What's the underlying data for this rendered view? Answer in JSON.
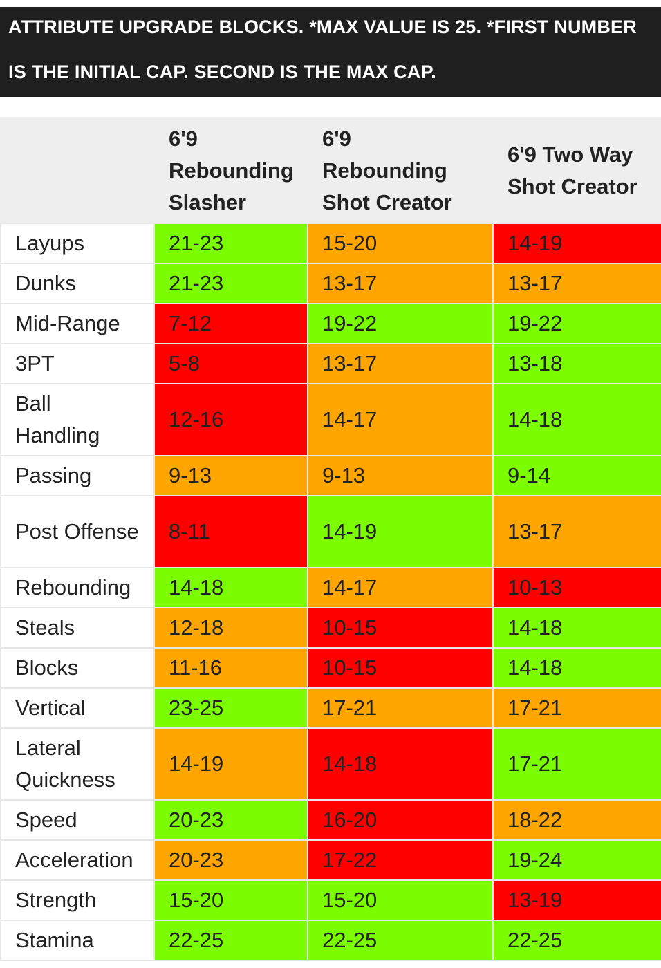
{
  "banner": {
    "line1": "ATTRIBUTE UPGRADE BLOCKS. *MAX VALUE IS 25. *FIRST NUMBER",
    "line2": "IS THE INITIAL CAP. SECOND IS THE MAX CAP."
  },
  "colors": {
    "green": "#7cfc00",
    "orange": "#ffa500",
    "red": "#ff0000",
    "header_bg": "#eeeeee",
    "banner_bg": "#1f1f1f"
  },
  "table": {
    "columns": [
      "6'9 Rebounding Slasher",
      "6'9 Rebounding Shot Creator",
      "6'9 Two Way Shot Creator"
    ],
    "rows": [
      {
        "label": "Layups",
        "values": [
          "21-23",
          "15-20",
          "14-19"
        ],
        "colors": [
          "green",
          "orange",
          "red"
        ]
      },
      {
        "label": "Dunks",
        "values": [
          "21-23",
          "13-17",
          "13-17"
        ],
        "colors": [
          "green",
          "orange",
          "orange"
        ]
      },
      {
        "label": "Mid-Range",
        "values": [
          "7-12",
          "19-22",
          "19-22"
        ],
        "colors": [
          "red",
          "green",
          "green"
        ]
      },
      {
        "label": "3PT",
        "values": [
          "5-8",
          "13-17",
          "13-18"
        ],
        "colors": [
          "red",
          "orange",
          "green"
        ]
      },
      {
        "label": "Ball Handling",
        "values": [
          "12-16",
          "14-17",
          "14-18"
        ],
        "colors": [
          "red",
          "orange",
          "green"
        ]
      },
      {
        "label": "Passing",
        "values": [
          "9-13",
          "9-13",
          "9-14"
        ],
        "colors": [
          "orange",
          "orange",
          "green"
        ]
      },
      {
        "label": "Post Offense",
        "values": [
          "8-11",
          "14-19",
          "13-17"
        ],
        "colors": [
          "red",
          "green",
          "orange"
        ]
      },
      {
        "label": "Rebounding",
        "values": [
          "14-18",
          "14-17",
          "10-13"
        ],
        "colors": [
          "green",
          "orange",
          "red"
        ]
      },
      {
        "label": "Steals",
        "values": [
          "12-18",
          "10-15",
          "14-18"
        ],
        "colors": [
          "orange",
          "red",
          "green"
        ]
      },
      {
        "label": "Blocks",
        "values": [
          "11-16",
          "10-15",
          "14-18"
        ],
        "colors": [
          "orange",
          "red",
          "green"
        ]
      },
      {
        "label": "Vertical",
        "values": [
          "23-25",
          "17-21",
          "17-21"
        ],
        "colors": [
          "green",
          "orange",
          "orange"
        ]
      },
      {
        "label": "Lateral Quickness",
        "values": [
          "14-19",
          "14-18",
          "17-21"
        ],
        "colors": [
          "orange",
          "red",
          "green"
        ]
      },
      {
        "label": "Speed",
        "values": [
          "20-23",
          "16-20",
          "18-22"
        ],
        "colors": [
          "green",
          "red",
          "orange"
        ]
      },
      {
        "label": "Acceleration",
        "values": [
          "20-23",
          "17-22",
          "19-24"
        ],
        "colors": [
          "orange",
          "red",
          "green"
        ]
      },
      {
        "label": "Strength",
        "values": [
          "15-20",
          "15-20",
          "13-19"
        ],
        "colors": [
          "green",
          "green",
          "red"
        ]
      },
      {
        "label": "Stamina",
        "values": [
          "22-25",
          "22-25",
          "22-25"
        ],
        "colors": [
          "green",
          "green",
          "green"
        ]
      }
    ]
  }
}
